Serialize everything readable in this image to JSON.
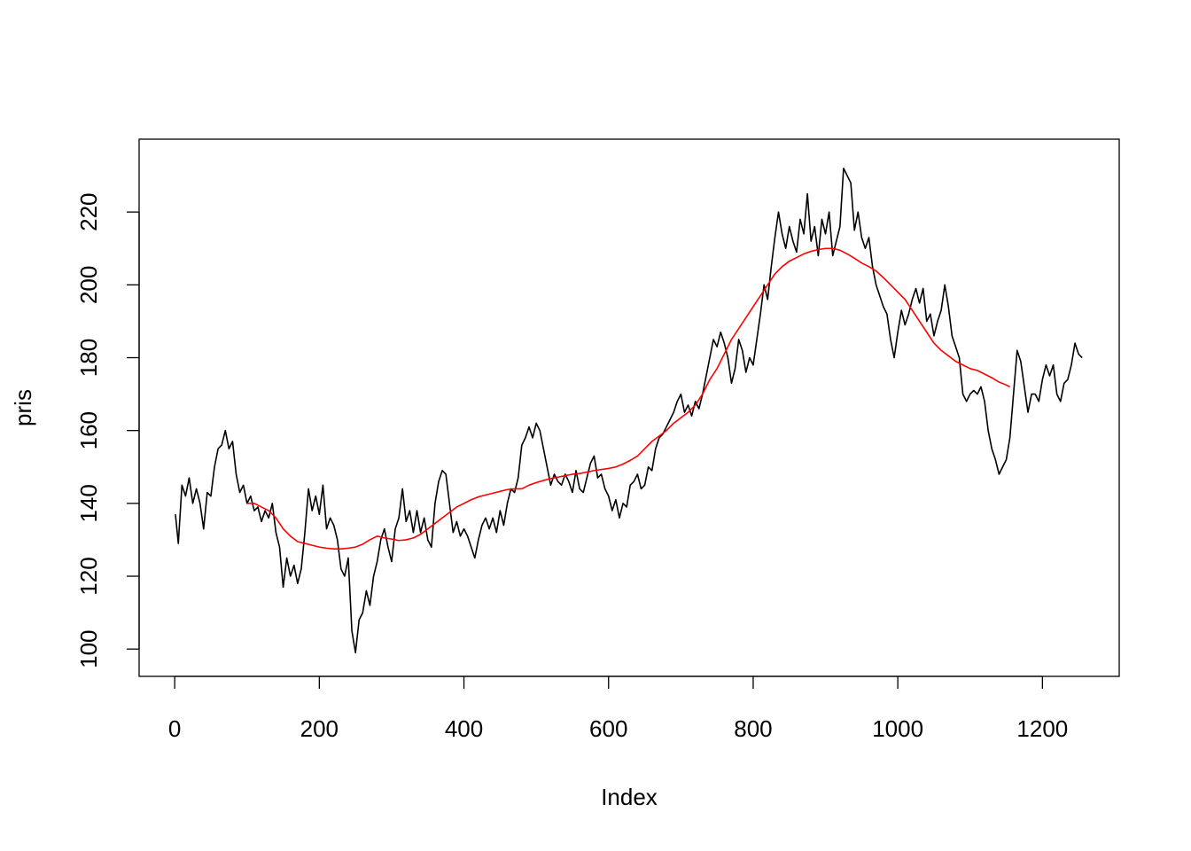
{
  "chart_data": {
    "type": "line",
    "xlabel": "Index",
    "ylabel": "pris",
    "xlim": [
      -49.2,
      1306.2
    ],
    "ylim": [
      92.5,
      240
    ],
    "xticks": [
      0,
      200,
      400,
      600,
      800,
      1000,
      1200
    ],
    "yticks": [
      100,
      120,
      140,
      160,
      180,
      200,
      220
    ],
    "grid": false,
    "series": [
      {
        "color": "#000000",
        "x": [
          1,
          5,
          10,
          15,
          20,
          25,
          30,
          35,
          40,
          45,
          50,
          55,
          60,
          65,
          70,
          75,
          80,
          85,
          90,
          95,
          100,
          105,
          110,
          115,
          120,
          125,
          130,
          135,
          140,
          145,
          150,
          155,
          160,
          165,
          170,
          175,
          180,
          185,
          190,
          195,
          200,
          205,
          210,
          215,
          220,
          225,
          230,
          235,
          240,
          245,
          250,
          255,
          260,
          265,
          270,
          275,
          280,
          285,
          290,
          295,
          300,
          305,
          310,
          315,
          320,
          325,
          330,
          335,
          340,
          345,
          350,
          355,
          360,
          365,
          370,
          375,
          380,
          385,
          390,
          395,
          400,
          405,
          410,
          415,
          420,
          425,
          430,
          435,
          440,
          445,
          450,
          455,
          460,
          465,
          470,
          475,
          480,
          485,
          490,
          495,
          500,
          505,
          510,
          515,
          520,
          525,
          530,
          535,
          540,
          545,
          550,
          555,
          560,
          565,
          570,
          575,
          580,
          585,
          590,
          595,
          600,
          605,
          610,
          615,
          620,
          625,
          630,
          635,
          640,
          645,
          650,
          655,
          660,
          665,
          670,
          675,
          680,
          685,
          690,
          695,
          700,
          705,
          710,
          715,
          720,
          725,
          730,
          735,
          740,
          745,
          750,
          755,
          760,
          765,
          770,
          775,
          780,
          785,
          790,
          795,
          800,
          805,
          810,
          815,
          820,
          825,
          830,
          835,
          840,
          845,
          850,
          855,
          860,
          865,
          870,
          875,
          880,
          885,
          890,
          895,
          900,
          905,
          910,
          915,
          920,
          925,
          930,
          935,
          940,
          945,
          950,
          955,
          960,
          965,
          970,
          975,
          980,
          985,
          990,
          995,
          1000,
          1005,
          1010,
          1015,
          1020,
          1025,
          1030,
          1035,
          1040,
          1045,
          1050,
          1055,
          1060,
          1065,
          1070,
          1075,
          1080,
          1085,
          1090,
          1095,
          1100,
          1105,
          1110,
          1115,
          1120,
          1125,
          1130,
          1135,
          1140,
          1145,
          1150,
          1155,
          1160,
          1165,
          1170,
          1175,
          1180,
          1185,
          1190,
          1195,
          1200,
          1205,
          1210,
          1215,
          1220,
          1225,
          1230,
          1235,
          1240,
          1245,
          1250,
          1255
        ],
        "values": [
          137,
          129,
          145,
          142,
          147,
          140,
          144,
          140,
          133,
          143,
          142,
          150,
          155,
          156,
          160,
          155,
          157,
          148,
          143,
          145,
          140,
          142,
          138,
          139,
          135,
          138,
          136,
          140,
          132,
          128,
          117,
          125,
          120,
          123,
          118,
          122,
          132,
          144,
          138,
          142,
          137,
          145,
          133,
          136,
          134,
          130,
          122,
          120,
          125,
          105,
          99,
          108,
          110,
          116,
          112,
          120,
          124,
          130,
          133,
          128,
          124,
          133,
          136,
          144,
          135,
          138,
          132,
          138,
          132,
          136,
          130,
          128,
          140,
          146,
          149,
          148,
          140,
          132,
          135,
          131,
          133,
          131,
          128,
          125,
          130,
          134,
          136,
          133,
          136,
          132,
          138,
          134,
          140,
          144,
          143,
          147,
          156,
          158,
          161,
          158,
          162,
          160,
          155,
          150,
          145,
          148,
          146,
          145,
          148,
          146,
          143,
          149,
          144,
          143,
          147,
          151,
          153,
          147,
          148,
          144,
          142,
          138,
          141,
          136,
          140,
          139,
          145,
          146,
          148,
          144,
          145,
          150,
          149,
          155,
          158,
          159,
          161,
          163,
          165,
          168,
          170,
          165,
          167,
          164,
          168,
          166,
          170,
          175,
          180,
          185,
          183,
          187,
          184,
          180,
          173,
          177,
          185,
          182,
          176,
          180,
          178,
          185,
          192,
          200,
          196,
          205,
          213,
          220,
          214,
          210,
          216,
          212,
          209,
          218,
          214,
          225,
          212,
          216,
          208,
          218,
          214,
          220,
          208,
          212,
          216,
          232,
          230,
          228,
          215,
          220,
          213,
          210,
          213,
          205,
          200,
          197,
          194,
          192,
          185,
          180,
          187,
          193,
          189,
          192,
          196,
          199,
          195,
          199,
          190,
          192,
          186,
          190,
          193,
          200,
          194,
          186,
          183,
          180,
          170,
          168,
          170,
          171,
          170,
          172,
          168,
          160,
          155,
          152,
          148,
          150,
          152,
          158,
          170,
          182,
          179,
          172,
          165,
          170,
          170,
          168,
          174,
          178,
          175,
          178,
          170,
          168,
          173,
          174,
          178,
          184,
          181,
          180
        ]
      },
      {
        "color": "#ff0000",
        "x": [
          100,
          110,
          120,
          130,
          140,
          150,
          160,
          170,
          180,
          190,
          200,
          210,
          220,
          230,
          240,
          250,
          260,
          270,
          280,
          290,
          300,
          310,
          320,
          330,
          340,
          350,
          360,
          370,
          380,
          390,
          400,
          410,
          420,
          430,
          440,
          450,
          460,
          470,
          480,
          490,
          500,
          510,
          520,
          530,
          540,
          550,
          560,
          570,
          580,
          590,
          600,
          610,
          620,
          630,
          640,
          650,
          660,
          670,
          680,
          690,
          700,
          710,
          720,
          730,
          740,
          750,
          760,
          770,
          780,
          790,
          800,
          810,
          820,
          830,
          840,
          850,
          860,
          870,
          880,
          890,
          900,
          910,
          920,
          930,
          940,
          950,
          960,
          970,
          980,
          990,
          1000,
          1010,
          1020,
          1030,
          1040,
          1050,
          1060,
          1070,
          1080,
          1090,
          1100,
          1110,
          1120,
          1130,
          1140,
          1150,
          1155
        ],
        "values": [
          140,
          140,
          139,
          138,
          136,
          133,
          131,
          129.5,
          129,
          128.5,
          128,
          127.7,
          127.5,
          127.5,
          127.7,
          128,
          128.8,
          130,
          131,
          130.5,
          130.2,
          129.8,
          130,
          130.5,
          131.5,
          133,
          134.5,
          136,
          137.5,
          139,
          140,
          141,
          141.8,
          142.3,
          142.8,
          143.3,
          143.8,
          144,
          144,
          145,
          145.7,
          146.3,
          146.8,
          147.2,
          147.6,
          148,
          148.2,
          148.6,
          149,
          149.3,
          149.6,
          150,
          150.8,
          151.8,
          153,
          155,
          157,
          158.5,
          160,
          162,
          163.5,
          165,
          167,
          170,
          174,
          177,
          181,
          185,
          188,
          191,
          194,
          197,
          200,
          203,
          205,
          206.5,
          207.5,
          208.5,
          209.2,
          209.7,
          210,
          210,
          209.5,
          208.5,
          207.3,
          206,
          205,
          203.8,
          202,
          200,
          198,
          196,
          193,
          190,
          187,
          184,
          182,
          180.5,
          179,
          178,
          177,
          176.5,
          175.5,
          174.5,
          173.3,
          172.5,
          172
        ]
      }
    ]
  }
}
